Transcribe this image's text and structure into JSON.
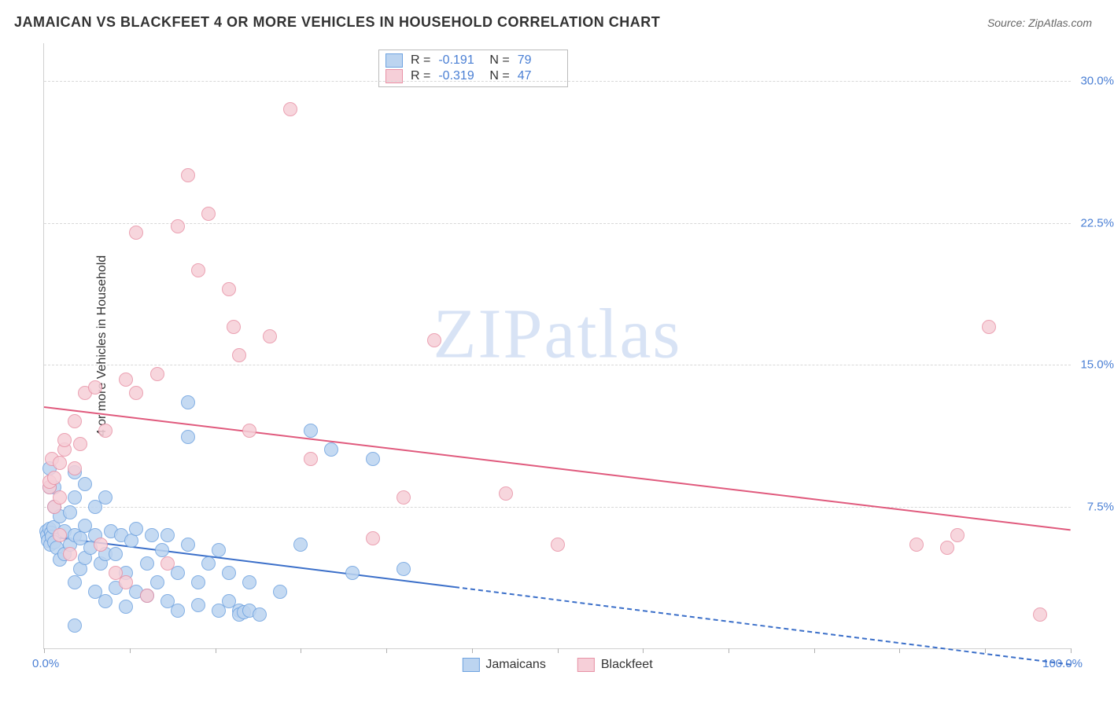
{
  "title": "JAMAICAN VS BLACKFEET 4 OR MORE VEHICLES IN HOUSEHOLD CORRELATION CHART",
  "source": "Source: ZipAtlas.com",
  "watermark_a": "ZIP",
  "watermark_b": "atlas",
  "y_axis_title": "4 or more Vehicles in Household",
  "chart": {
    "type": "scatter",
    "xlim": [
      0,
      100
    ],
    "ylim": [
      0,
      32
    ],
    "x_min_label": "0.0%",
    "x_max_label": "100.0%",
    "y_grid": [
      {
        "v": 7.5,
        "label": "7.5%"
      },
      {
        "v": 15.0,
        "label": "15.0%"
      },
      {
        "v": 22.5,
        "label": "22.5%"
      },
      {
        "v": 30.0,
        "label": "30.0%"
      }
    ],
    "x_ticks": [
      0,
      8.33,
      16.67,
      25,
      33.33,
      41.67,
      50,
      58.33,
      66.67,
      75,
      83.33,
      91.67,
      100
    ],
    "background_color": "#ffffff",
    "grid_color": "#d8d8d8",
    "marker_radius": 9,
    "marker_stroke_width": 1.5,
    "series": [
      {
        "name": "Jamaicans",
        "fill": "#bcd4f0",
        "stroke": "#6fa3e0",
        "R": "-0.191",
        "N": "79",
        "trend": {
          "x1": 0,
          "y1": 6.0,
          "x2": 40,
          "y2": 3.3,
          "dash_to_x": 100,
          "dash_to_y": -0.8,
          "color": "#3b6fc9"
        },
        "points": [
          [
            0.2,
            6.2
          ],
          [
            0.3,
            6.0
          ],
          [
            0.4,
            5.7
          ],
          [
            0.5,
            6.3
          ],
          [
            0.6,
            5.5
          ],
          [
            0.7,
            6.1
          ],
          [
            0.8,
            5.9
          ],
          [
            0.9,
            6.4
          ],
          [
            1.0,
            5.6
          ],
          [
            1.2,
            5.3
          ],
          [
            1.0,
            7.5
          ],
          [
            1.5,
            7.0
          ],
          [
            1.0,
            8.5
          ],
          [
            0.5,
            8.5
          ],
          [
            0.5,
            9.5
          ],
          [
            1.5,
            4.7
          ],
          [
            2.0,
            5.0
          ],
          [
            2.0,
            6.2
          ],
          [
            2.5,
            5.5
          ],
          [
            2.5,
            7.2
          ],
          [
            3.0,
            3.5
          ],
          [
            3.0,
            6.0
          ],
          [
            3.0,
            8.0
          ],
          [
            3.0,
            9.3
          ],
          [
            3.5,
            4.2
          ],
          [
            3.5,
            5.8
          ],
          [
            4.0,
            6.5
          ],
          [
            4.0,
            4.8
          ],
          [
            4.0,
            8.7
          ],
          [
            4.5,
            5.3
          ],
          [
            5.0,
            3.0
          ],
          [
            5.0,
            6.0
          ],
          [
            5.0,
            7.5
          ],
          [
            5.5,
            4.5
          ],
          [
            6.0,
            5.0
          ],
          [
            6.0,
            2.5
          ],
          [
            6.0,
            8.0
          ],
          [
            6.5,
            6.2
          ],
          [
            7.0,
            3.2
          ],
          [
            7.0,
            5.0
          ],
          [
            7.5,
            6.0
          ],
          [
            8.0,
            4.0
          ],
          [
            8.0,
            2.2
          ],
          [
            8.5,
            5.7
          ],
          [
            9.0,
            3.0
          ],
          [
            9.0,
            6.3
          ],
          [
            10.0,
            4.5
          ],
          [
            10.0,
            2.8
          ],
          [
            10.5,
            6.0
          ],
          [
            11.0,
            3.5
          ],
          [
            11.5,
            5.2
          ],
          [
            12.0,
            2.5
          ],
          [
            12.0,
            6.0
          ],
          [
            13.0,
            4.0
          ],
          [
            13.0,
            2.0
          ],
          [
            14.0,
            5.5
          ],
          [
            14.0,
            13.0
          ],
          [
            14.0,
            11.2
          ],
          [
            15.0,
            3.5
          ],
          [
            15.0,
            2.3
          ],
          [
            16.0,
            4.5
          ],
          [
            17.0,
            2.0
          ],
          [
            17.0,
            5.2
          ],
          [
            18.0,
            4.0
          ],
          [
            18.0,
            2.5
          ],
          [
            19.0,
            2.0
          ],
          [
            19.0,
            1.8
          ],
          [
            19.5,
            1.9
          ],
          [
            20.0,
            3.5
          ],
          [
            20.0,
            2.0
          ],
          [
            21.0,
            1.8
          ],
          [
            23.0,
            3.0
          ],
          [
            25.0,
            5.5
          ],
          [
            26.0,
            11.5
          ],
          [
            28.0,
            10.5
          ],
          [
            30.0,
            4.0
          ],
          [
            32.0,
            10.0
          ],
          [
            35.0,
            4.2
          ],
          [
            3.0,
            1.2
          ]
        ]
      },
      {
        "name": "Blackfeet",
        "fill": "#f6cfd8",
        "stroke": "#e892a6",
        "R": "-0.319",
        "N": "47",
        "trend": {
          "x1": 0,
          "y1": 12.8,
          "x2": 100,
          "y2": 6.3,
          "color": "#e05a7d"
        },
        "points": [
          [
            0.5,
            8.5
          ],
          [
            0.5,
            8.8
          ],
          [
            0.8,
            10.0
          ],
          [
            1.0,
            7.5
          ],
          [
            1.0,
            9.0
          ],
          [
            1.5,
            6.0
          ],
          [
            1.5,
            8.0
          ],
          [
            1.5,
            9.8
          ],
          [
            2.0,
            10.5
          ],
          [
            2.0,
            11.0
          ],
          [
            2.5,
            5.0
          ],
          [
            3.0,
            12.0
          ],
          [
            3.0,
            9.5
          ],
          [
            3.5,
            10.8
          ],
          [
            4.0,
            13.5
          ],
          [
            5.0,
            13.8
          ],
          [
            5.5,
            5.5
          ],
          [
            6.0,
            11.5
          ],
          [
            7.0,
            4.0
          ],
          [
            8.0,
            14.2
          ],
          [
            8.0,
            3.5
          ],
          [
            9.0,
            22.0
          ],
          [
            9.0,
            13.5
          ],
          [
            10.0,
            2.8
          ],
          [
            11.0,
            14.5
          ],
          [
            12.0,
            4.5
          ],
          [
            13.0,
            22.3
          ],
          [
            14.0,
            25.0
          ],
          [
            15.0,
            20.0
          ],
          [
            16.0,
            23.0
          ],
          [
            18.0,
            19.0
          ],
          [
            18.5,
            17.0
          ],
          [
            19.0,
            15.5
          ],
          [
            20.0,
            11.5
          ],
          [
            22.0,
            16.5
          ],
          [
            24.0,
            28.5
          ],
          [
            26.0,
            10.0
          ],
          [
            32.0,
            5.8
          ],
          [
            35.0,
            8.0
          ],
          [
            38.0,
            16.3
          ],
          [
            45.0,
            8.2
          ],
          [
            50.0,
            5.5
          ],
          [
            85.0,
            5.5
          ],
          [
            88.0,
            5.3
          ],
          [
            89.0,
            6.0
          ],
          [
            92.0,
            17.0
          ],
          [
            97.0,
            1.8
          ]
        ]
      }
    ]
  }
}
